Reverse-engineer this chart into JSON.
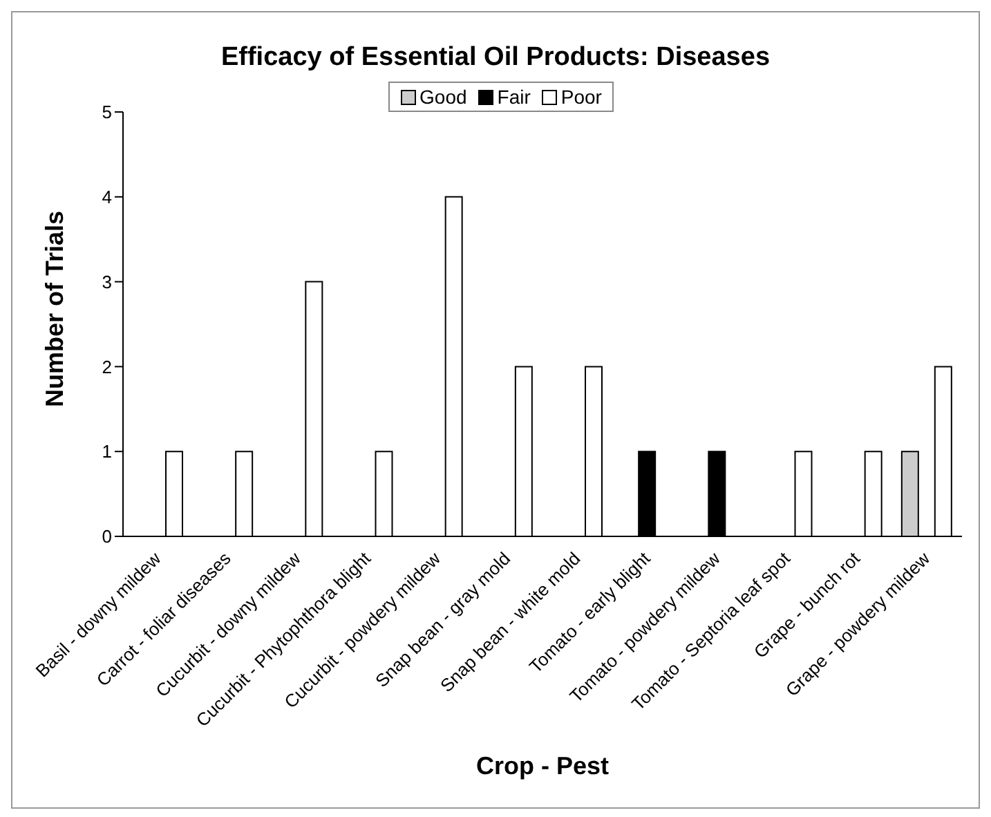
{
  "chart_data": {
    "type": "bar",
    "title": "Efficacy of Essential Oil Products: Diseases",
    "xlabel": "Crop - Pest",
    "ylabel": "Number of Trials",
    "categories": [
      "Basil - downy mildew",
      "Carrot - foliar diseases",
      "Cucurbit - downy mildew",
      "Cucurbit - Phytophthora blight",
      "Cucurbit - powdery mildew",
      "Snap bean - gray mold",
      "Snap bean - white mold",
      "Tomato - early blight",
      "Tomato - powdery mildew",
      "Tomato - Septoria leaf spot",
      "Grape - bunch rot",
      "Grape - powdery mildew"
    ],
    "series": [
      {
        "name": "Good",
        "color": "#cccccc",
        "values": [
          0,
          0,
          0,
          0,
          0,
          0,
          0,
          0,
          0,
          0,
          0,
          1
        ]
      },
      {
        "name": "Fair",
        "color": "#000000",
        "values": [
          0,
          0,
          0,
          0,
          0,
          0,
          0,
          1,
          1,
          0,
          0,
          0
        ]
      },
      {
        "name": "Poor",
        "color": "#ffffff",
        "values": [
          1,
          1,
          3,
          1,
          4,
          2,
          2,
          0,
          0,
          1,
          1,
          2
        ]
      }
    ],
    "ylim": [
      0,
      5
    ],
    "yticks": [
      0,
      1,
      2,
      3,
      4,
      5
    ],
    "grid": false,
    "legend": "top"
  }
}
